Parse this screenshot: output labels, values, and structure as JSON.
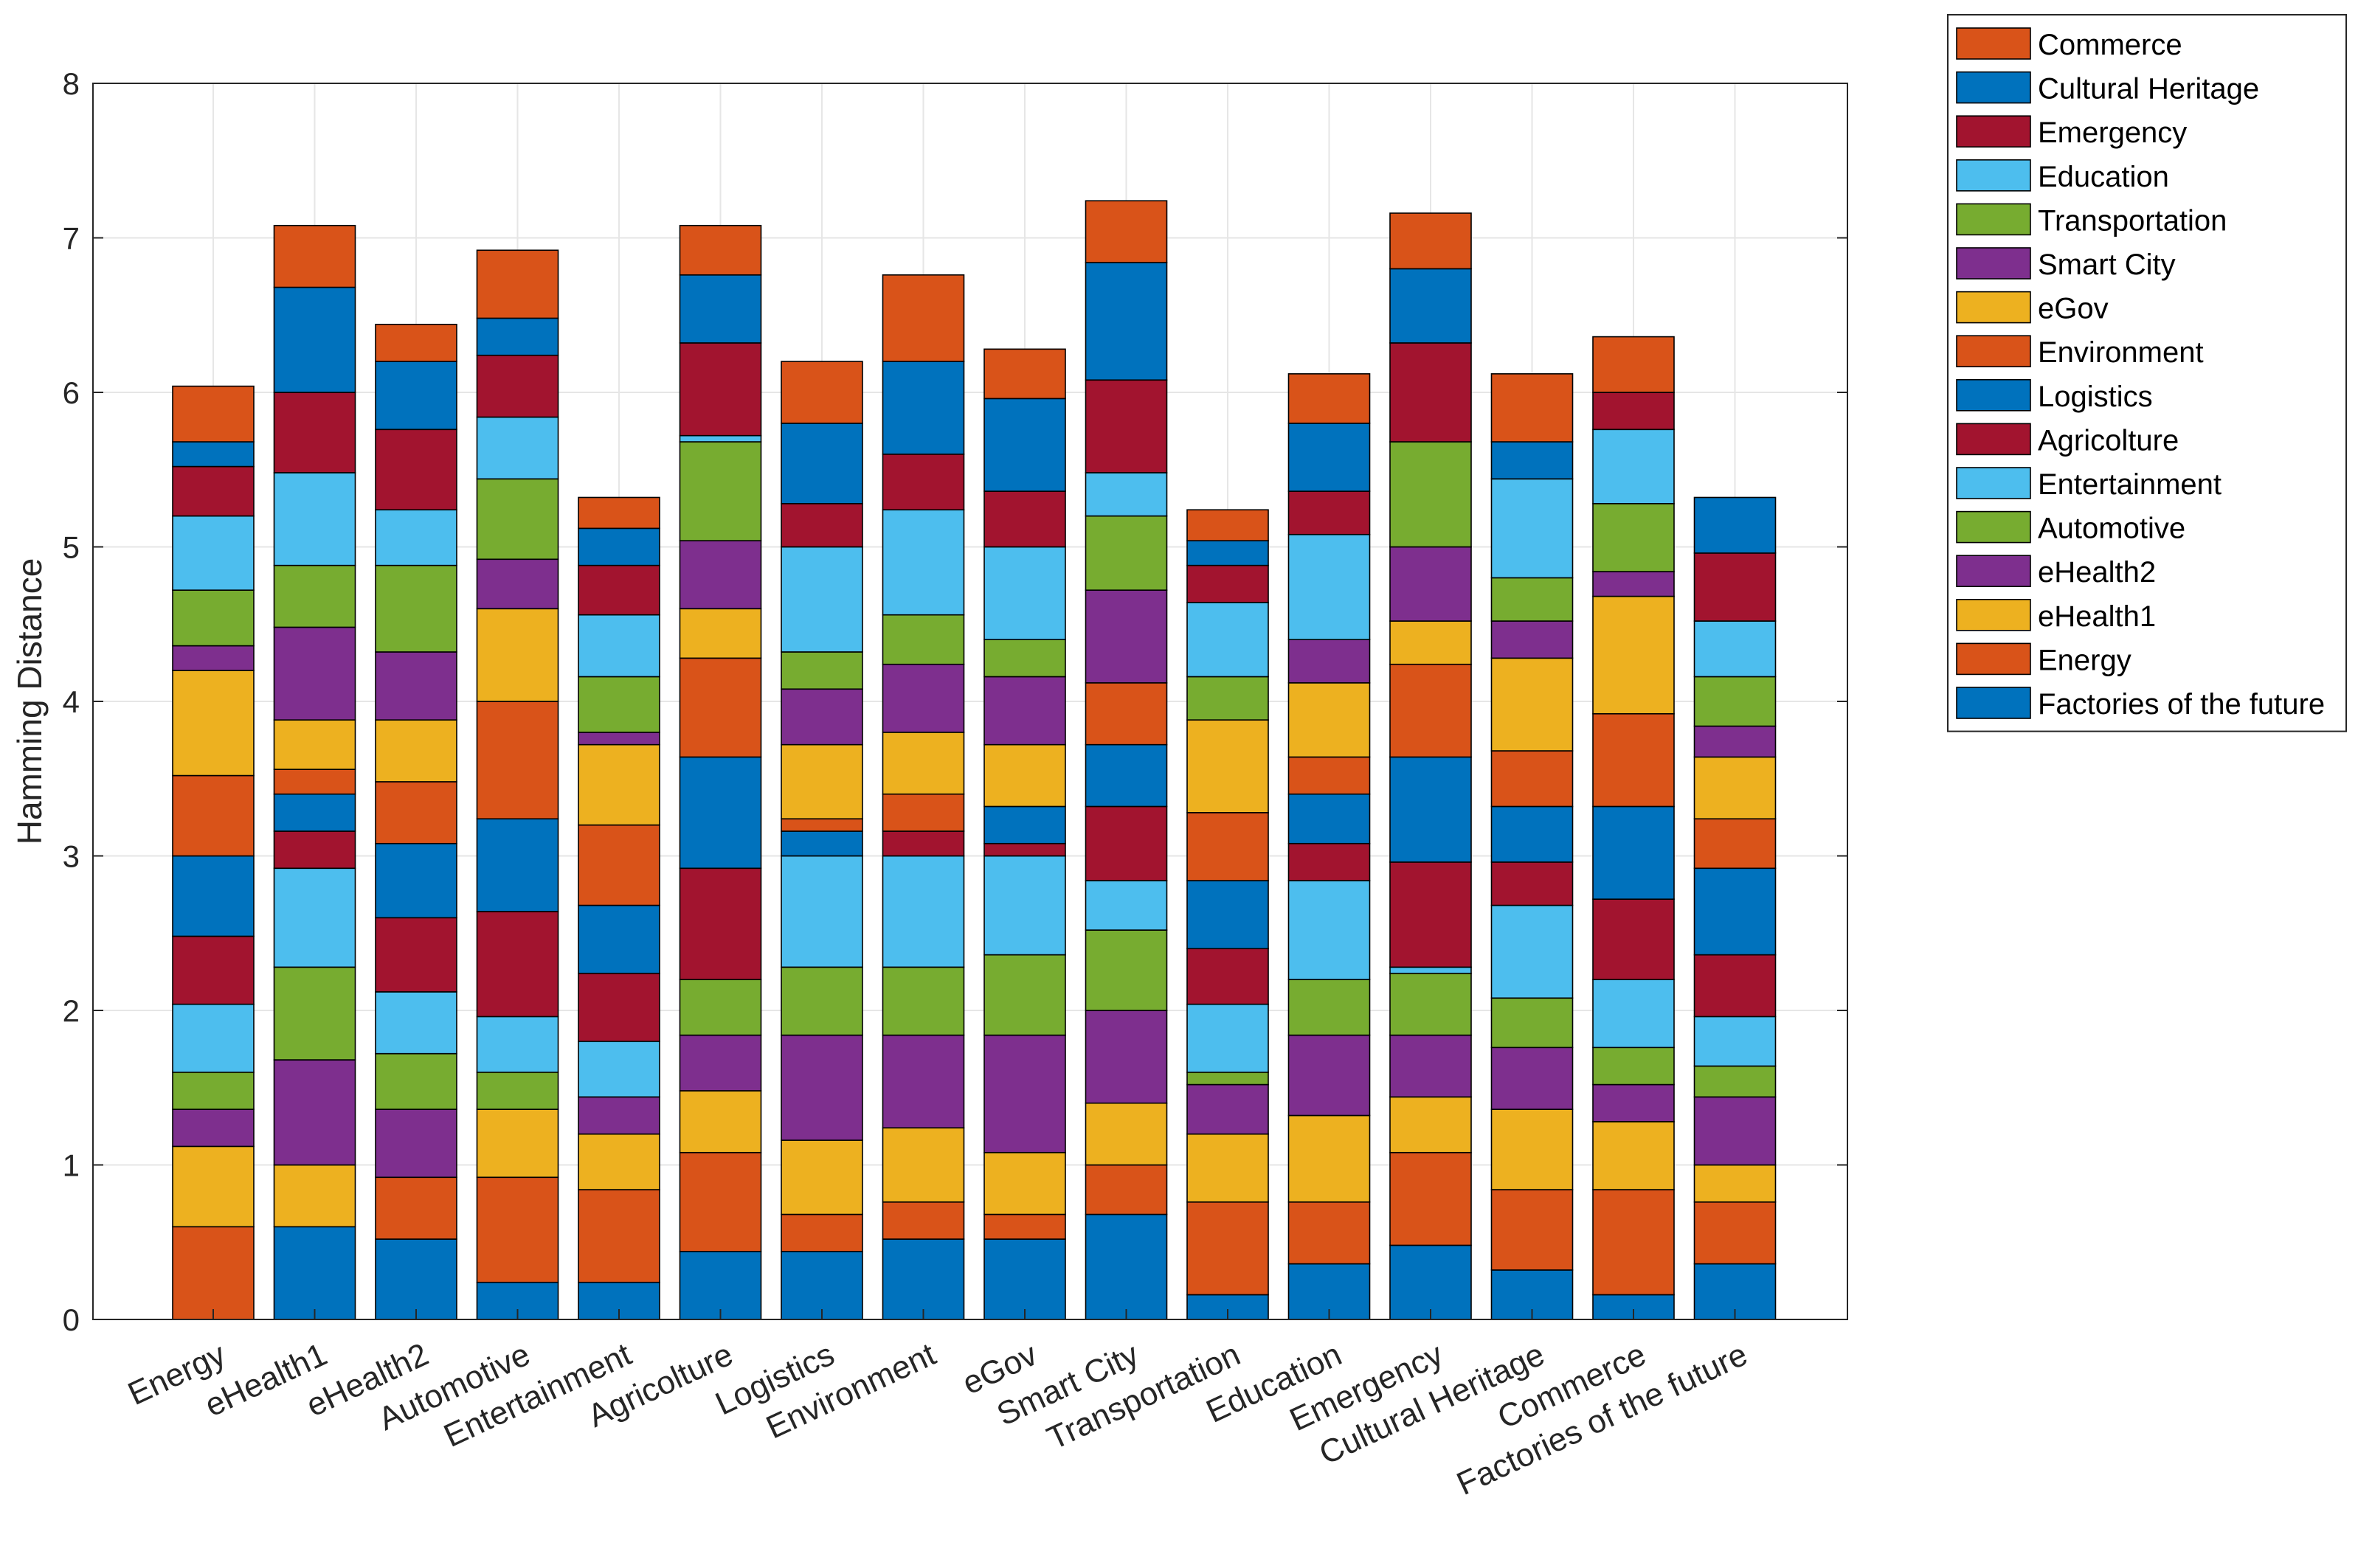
{
  "chart_data": {
    "type": "bar",
    "stacked": true,
    "title": "",
    "xlabel": "",
    "ylabel": "Hamming Distance",
    "ylim": [
      0,
      8
    ],
    "yticks": [
      0,
      1,
      2,
      3,
      4,
      5,
      6,
      7,
      8
    ],
    "grid": true,
    "legend_position": "outside-top-right",
    "categories": [
      "Energy",
      "eHealth1",
      "eHealth2",
      "Automotive",
      "Entertainment",
      "Agricolture",
      "Logistics",
      "Environment",
      "eGov",
      "Smart City",
      "Transportation",
      "Education",
      "Emergency",
      "Cultural Heritage",
      "Commerce",
      "Factories of the future"
    ],
    "series": [
      {
        "name": "Factories of the future",
        "color": "#0072BD",
        "values": [
          0,
          0.6,
          0.52,
          0.24,
          0.24,
          0.44,
          0.44,
          0.52,
          0.52,
          0.68,
          0.16,
          0.36,
          0.48,
          0.32,
          0.16,
          0.36
        ]
      },
      {
        "name": "Energy",
        "color": "#D95319",
        "values": [
          0.6,
          0,
          0.4,
          0.68,
          0.6,
          0.64,
          0.24,
          0.24,
          0.16,
          0.32,
          0.6,
          0.4,
          0.6,
          0.52,
          0.68,
          0.4
        ]
      },
      {
        "name": "eHealth1",
        "color": "#EDB120",
        "values": [
          0.52,
          0.4,
          0,
          0.44,
          0.36,
          0.4,
          0.48,
          0.48,
          0.4,
          0.4,
          0.44,
          0.56,
          0.36,
          0.52,
          0.44,
          0.24
        ]
      },
      {
        "name": "eHealth2",
        "color": "#7E2F8E",
        "values": [
          0.24,
          0.68,
          0.44,
          0,
          0.24,
          0.36,
          0.68,
          0.6,
          0.76,
          0.6,
          0.32,
          0.52,
          0.4,
          0.4,
          0.24,
          0.44
        ]
      },
      {
        "name": "Automotive",
        "color": "#77AC30",
        "values": [
          0.24,
          0.6,
          0.36,
          0.24,
          0,
          0.36,
          0.44,
          0.44,
          0.52,
          0.52,
          0.08,
          0.36,
          0.4,
          0.32,
          0.24,
          0.2
        ]
      },
      {
        "name": "Entertainment",
        "color": "#4DBEEE",
        "values": [
          0.44,
          0.64,
          0.4,
          0.36,
          0.36,
          0,
          0.72,
          0.72,
          0.64,
          0.32,
          0.44,
          0.64,
          0.04,
          0.6,
          0.44,
          0.32
        ]
      },
      {
        "name": "Agricolture",
        "color": "#A2142F",
        "values": [
          0.44,
          0.24,
          0.48,
          0.68,
          0.44,
          0.72,
          0,
          0.16,
          0.08,
          0.48,
          0.36,
          0.24,
          0.68,
          0.28,
          0.52,
          0.4
        ]
      },
      {
        "name": "Logistics",
        "color": "#0072BD",
        "values": [
          0.52,
          0.24,
          0.48,
          0.6,
          0.44,
          0.72,
          0.16,
          0,
          0.24,
          0.4,
          0.44,
          0.32,
          0.68,
          0.36,
          0.6,
          0.56
        ]
      },
      {
        "name": "Environment",
        "color": "#D95319",
        "values": [
          0.52,
          0.16,
          0.4,
          0.76,
          0.52,
          0.64,
          0.08,
          0.24,
          0,
          0.4,
          0.44,
          0.24,
          0.6,
          0.36,
          0.6,
          0.32
        ]
      },
      {
        "name": "eGov",
        "color": "#EDB120",
        "values": [
          0.68,
          0.32,
          0.4,
          0.6,
          0.52,
          0.32,
          0.48,
          0.4,
          0.4,
          0,
          0.6,
          0.48,
          0.28,
          0.6,
          0.76,
          0.4
        ]
      },
      {
        "name": "Smart City",
        "color": "#7E2F8E",
        "values": [
          0.16,
          0.6,
          0.44,
          0.32,
          0.08,
          0.44,
          0.36,
          0.44,
          0.44,
          0.6,
          0,
          0.28,
          0.48,
          0.24,
          0.16,
          0.2
        ]
      },
      {
        "name": "Transportation",
        "color": "#77AC30",
        "values": [
          0.36,
          0.4,
          0.56,
          0.52,
          0.36,
          0.64,
          0.24,
          0.32,
          0.24,
          0.48,
          0.28,
          0,
          0.68,
          0.28,
          0.44,
          0.32
        ]
      },
      {
        "name": "Education",
        "color": "#4DBEEE",
        "values": [
          0.48,
          0.6,
          0.36,
          0.4,
          0.4,
          0.04,
          0.68,
          0.68,
          0.6,
          0.28,
          0.48,
          0.68,
          0,
          0.64,
          0.48,
          0.36
        ]
      },
      {
        "name": "Emergency",
        "color": "#A2142F",
        "values": [
          0.32,
          0.52,
          0.52,
          0.4,
          0.32,
          0.6,
          0.28,
          0.36,
          0.36,
          0.6,
          0.24,
          0.28,
          0.64,
          0,
          0.24,
          0.44
        ]
      },
      {
        "name": "Cultural Heritage",
        "color": "#0072BD",
        "values": [
          0.16,
          0.68,
          0.44,
          0.24,
          0.24,
          0.44,
          0.52,
          0.6,
          0.6,
          0.76,
          0.16,
          0.44,
          0.48,
          0.24,
          0,
          0.36
        ]
      },
      {
        "name": "Commerce",
        "color": "#D95319",
        "values": [
          0.36,
          0.4,
          0.24,
          0.44,
          0.2,
          0.32,
          0.4,
          0.56,
          0.32,
          0.4,
          0.2,
          0.32,
          0.36,
          0.44,
          0.36,
          0
        ]
      }
    ]
  }
}
